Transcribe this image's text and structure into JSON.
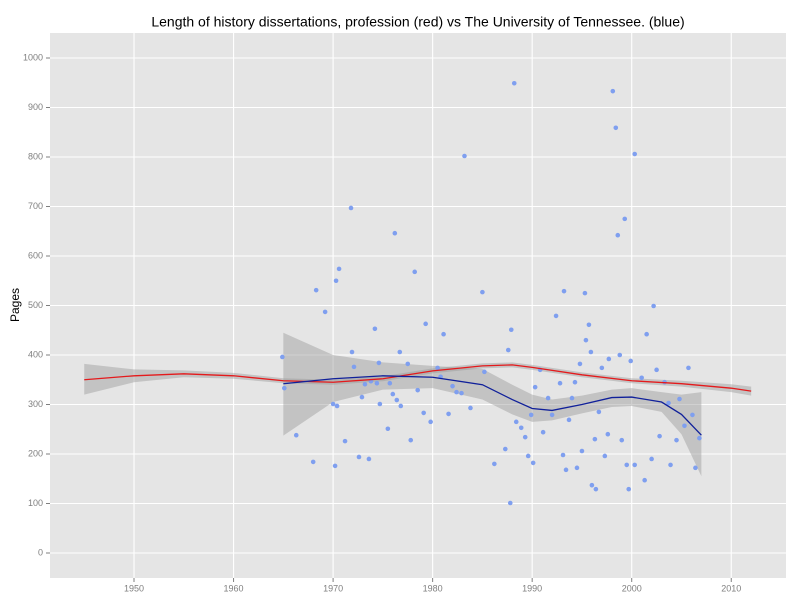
{
  "chart_data": {
    "type": "scatter",
    "title": "Length of history dissertations, profession (red) vs The University of Tennessee. (blue)",
    "ylabel": "Pages",
    "xlim": [
      1941.56,
      2015.5
    ],
    "ylim": [
      -50.5,
      1050.5
    ],
    "xticks": [
      1950,
      1960,
      1970,
      1980,
      1990,
      2000,
      2010
    ],
    "yticks": [
      0,
      100,
      200,
      300,
      400,
      500,
      600,
      700,
      800,
      900,
      1000
    ],
    "grid": true,
    "points": {
      "color": "#7f9fef",
      "x": [
        1964.9,
        1965.1,
        1966.3,
        1968,
        1968.3,
        1969.2,
        1970.3,
        1970.6,
        1970.2,
        1970,
        1970.4,
        1971.2,
        1971.8,
        1971.9,
        1972.1,
        1972.6,
        1972.9,
        1973.2,
        1973.6,
        1973.8,
        1974.2,
        1974.4,
        1974.6,
        1974.7,
        1975.5,
        1975.7,
        1976,
        1976.2,
        1976.4,
        1976.7,
        1976.8,
        1977.5,
        1977.8,
        1978.2,
        1978.5,
        1979.1,
        1979.3,
        1979.8,
        1980.5,
        1980.8,
        1981.1,
        1981.6,
        1982,
        1982.4,
        1982.9,
        1983.2,
        1983.8,
        1985,
        1985.2,
        1986.2,
        1987.3,
        1987.6,
        1987.9,
        1987.8,
        1988.2,
        1988.4,
        1988.9,
        1989.3,
        1989.6,
        1989.9,
        1990.1,
        1990.3,
        1990.8,
        1991.1,
        1991.6,
        1992,
        1992.4,
        1992.8,
        1993.1,
        1993.2,
        1993.4,
        1993.7,
        1994,
        1994.3,
        1994.5,
        1994.8,
        1995,
        1995.3,
        1995.4,
        1995.7,
        1995.9,
        1996,
        1996.3,
        1996.4,
        1996.7,
        1997,
        1997.3,
        1997.6,
        1997.7,
        1998.1,
        1998.4,
        1998.6,
        1998.8,
        1999,
        1999.3,
        1999.5,
        1999.7,
        1999.9,
        2000.3,
        2000.3,
        2001,
        2001.3,
        2001.5,
        2002,
        2002.2,
        2002.5,
        2002.8,
        2003.3,
        2003.7,
        2003.9,
        2004.5,
        2004.8,
        2005.3,
        2005.7,
        2006.1,
        2006.4,
        2006.8
      ],
      "values": [
        396,
        333,
        238,
        184,
        531,
        487,
        550,
        574,
        176,
        301,
        297,
        226,
        697,
        406,
        376,
        194,
        315,
        341,
        190,
        347,
        453,
        343,
        384,
        301,
        251,
        343,
        321,
        646,
        309,
        406,
        297,
        382,
        228,
        568,
        329,
        283,
        463,
        265,
        374,
        356,
        442,
        281,
        337,
        325,
        323,
        802,
        293,
        527,
        366,
        180,
        210,
        410,
        451,
        101,
        949,
        265,
        253,
        234,
        196,
        279,
        182,
        335,
        370,
        244,
        313,
        279,
        479,
        343,
        198,
        529,
        168,
        269,
        313,
        345,
        172,
        382,
        206,
        525,
        430,
        461,
        406,
        137,
        230,
        129,
        285,
        374,
        196,
        240,
        392,
        933,
        859,
        642,
        400,
        228,
        675,
        178,
        129,
        388,
        806,
        178,
        354,
        147,
        442,
        190,
        499,
        370,
        236,
        345,
        303,
        178,
        228,
        311,
        257,
        374,
        279,
        172,
        232
      ]
    },
    "lines": [
      {
        "color": "#e41a1c",
        "x": [
          1945,
          1950,
          1955,
          1960,
          1965,
          1970,
          1975,
          1980,
          1985,
          1988,
          1990,
          1995,
          2000,
          2005,
          2010,
          2012
        ],
        "values": [
          350,
          358,
          362,
          358,
          348,
          345,
          352,
          368,
          378,
          380,
          375,
          360,
          348,
          342,
          333,
          327
        ],
        "lower": [
          320,
          345,
          355,
          352,
          343,
          340,
          347,
          363,
          373,
          375,
          370,
          355,
          343,
          336,
          325,
          318
        ],
        "upper": [
          382,
          371,
          369,
          364,
          353,
          350,
          357,
          373,
          383,
          385,
          380,
          365,
          353,
          348,
          341,
          336
        ]
      },
      {
        "color": "#10209a",
        "x": [
          1965,
          1970,
          1975,
          1980,
          1985,
          1988,
          1990,
          1992,
          1995,
          1998,
          2000,
          2003,
          2005,
          2007
        ],
        "values": [
          342,
          352,
          358,
          355,
          340,
          310,
          292,
          288,
          300,
          314,
          315,
          305,
          280,
          238
        ],
        "lower": [
          237,
          305,
          330,
          333,
          310,
          280,
          265,
          268,
          282,
          295,
          297,
          285,
          240,
          155
        ],
        "upper": [
          445,
          400,
          385,
          378,
          372,
          340,
          320,
          310,
          318,
          330,
          333,
          325,
          320,
          325
        ]
      }
    ]
  }
}
